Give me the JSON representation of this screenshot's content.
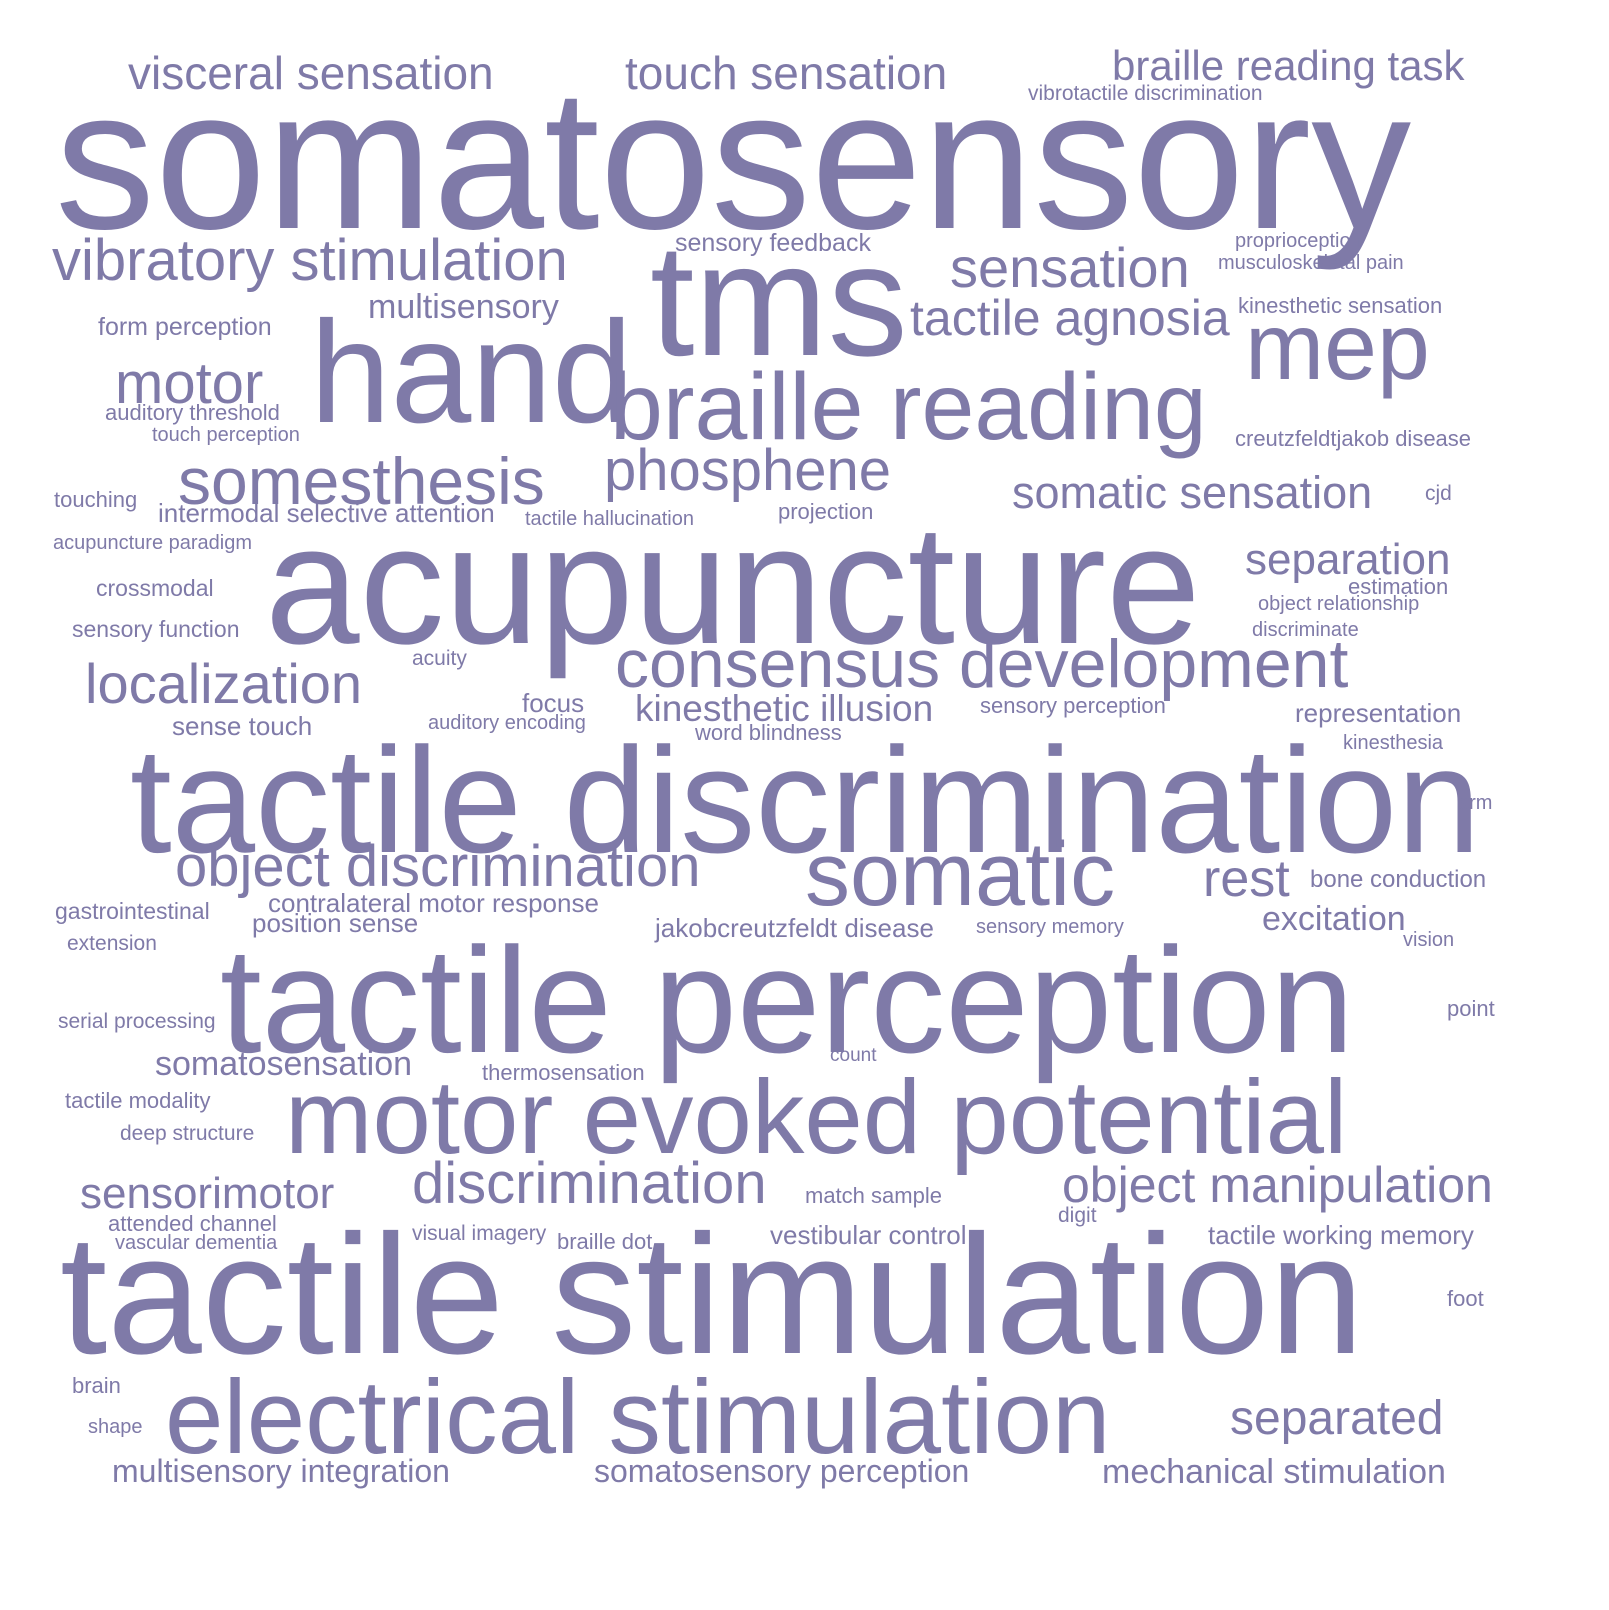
{
  "word_cloud": {
    "color": "#7f7aa8",
    "background": "#ffffff",
    "words": [
      {
        "text": "somatosensory"
      },
      {
        "text": "acupuncture"
      },
      {
        "text": "tactile discrimination"
      },
      {
        "text": "tactile perception"
      },
      {
        "text": "tactile stimulation"
      },
      {
        "text": "motor evoked potential"
      },
      {
        "text": "electrical stimulation"
      },
      {
        "text": "tms"
      },
      {
        "text": "hand"
      },
      {
        "text": "braille reading"
      },
      {
        "text": "mep"
      },
      {
        "text": "somatic"
      },
      {
        "text": "consensus development"
      },
      {
        "text": "object discrimination"
      },
      {
        "text": "discrimination"
      },
      {
        "text": "somesthesis"
      },
      {
        "text": "vibratory stimulation"
      },
      {
        "text": "phosphene"
      },
      {
        "text": "localization"
      },
      {
        "text": "object manipulation"
      },
      {
        "text": "motor"
      },
      {
        "text": "sensation"
      },
      {
        "text": "tactile agnosia"
      },
      {
        "text": "separated"
      },
      {
        "text": "visceral sensation"
      },
      {
        "text": "touch sensation"
      },
      {
        "text": "braille reading task"
      },
      {
        "text": "somatic sensation"
      },
      {
        "text": "separation"
      },
      {
        "text": "sensorimotor"
      },
      {
        "text": "rest"
      },
      {
        "text": "kinesthetic illusion"
      },
      {
        "text": "multisensory integration"
      },
      {
        "text": "somatosensory perception"
      },
      {
        "text": "mechanical stimulation"
      },
      {
        "text": "multisensory"
      },
      {
        "text": "somatosensation"
      },
      {
        "text": "excitation"
      },
      {
        "text": "contralateral motor response"
      },
      {
        "text": "jakobcreutzfeldt disease"
      },
      {
        "text": "intermodal selective attention"
      },
      {
        "text": "position sense"
      },
      {
        "text": "sense touch"
      },
      {
        "text": "representation"
      },
      {
        "text": "vestibular control"
      },
      {
        "text": "tactile working memory"
      },
      {
        "text": "bone conduction"
      },
      {
        "text": "sensory feedback"
      },
      {
        "text": "form perception"
      },
      {
        "text": "auditory threshold"
      },
      {
        "text": "creutzfeldtjakob disease"
      },
      {
        "text": "kinesthetic sensation"
      },
      {
        "text": "touch perception"
      },
      {
        "text": "gastrointestinal"
      },
      {
        "text": "crossmodal"
      },
      {
        "text": "sensory function"
      },
      {
        "text": "sensory perception"
      },
      {
        "text": "match sample"
      },
      {
        "text": "thermosensation"
      },
      {
        "text": "word blindness"
      },
      {
        "text": "tactile modality"
      },
      {
        "text": "attended channel"
      },
      {
        "text": "vascular dementia"
      },
      {
        "text": "focus"
      },
      {
        "text": "estimation"
      },
      {
        "text": "touching"
      },
      {
        "text": "tactile hallucination"
      },
      {
        "text": "projection"
      },
      {
        "text": "acupuncture paradigm"
      },
      {
        "text": "object relationship"
      },
      {
        "text": "discriminate"
      },
      {
        "text": "acuity"
      },
      {
        "text": "auditory encoding"
      },
      {
        "text": "kinesthesia"
      },
      {
        "text": "serial processing"
      },
      {
        "text": "deep structure"
      },
      {
        "text": "braille dot"
      },
      {
        "text": "visual imagery"
      },
      {
        "text": "vibrotactile discrimination"
      },
      {
        "text": "proprioception"
      },
      {
        "text": "musculoskeletal pain"
      },
      {
        "text": "sensory memory"
      },
      {
        "text": "extension"
      },
      {
        "text": "count"
      },
      {
        "text": "digit"
      },
      {
        "text": "point"
      },
      {
        "text": "foot"
      },
      {
        "text": "brain"
      },
      {
        "text": "shape"
      },
      {
        "text": "cjd"
      },
      {
        "text": "arm"
      },
      {
        "text": "vision"
      }
    ]
  }
}
